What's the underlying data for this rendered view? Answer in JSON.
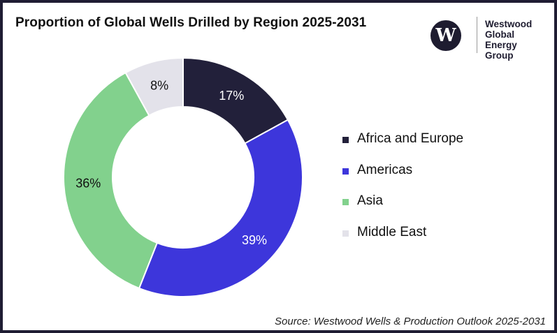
{
  "header": {
    "title": "Proportion of Global Wells Drilled by Region 2025-2031"
  },
  "logo": {
    "mark": "W",
    "lines": [
      "Westwood",
      "Global Energy",
      "Group"
    ],
    "icon": "westwood-w-logo-icon"
  },
  "chart_data": {
    "type": "pie",
    "variant": "donut",
    "title": "Proportion of Global Wells Drilled by Region 2025-2031",
    "legend_position": "right",
    "categories": [
      "Africa and Europe",
      "Americas",
      "Asia",
      "Middle East"
    ],
    "values": [
      17,
      39,
      36,
      8
    ],
    "labels": [
      "17%",
      "39%",
      "36%",
      "8%"
    ],
    "colors": [
      "#22203a",
      "#3d36db",
      "#82d18d",
      "#e3e2ea"
    ],
    "label_colors": [
      "#ffffff",
      "#ffffff",
      "#111111",
      "#111111"
    ]
  },
  "footer": {
    "source": "Source: Westwood Wells & Production Outlook 2025-2031"
  }
}
